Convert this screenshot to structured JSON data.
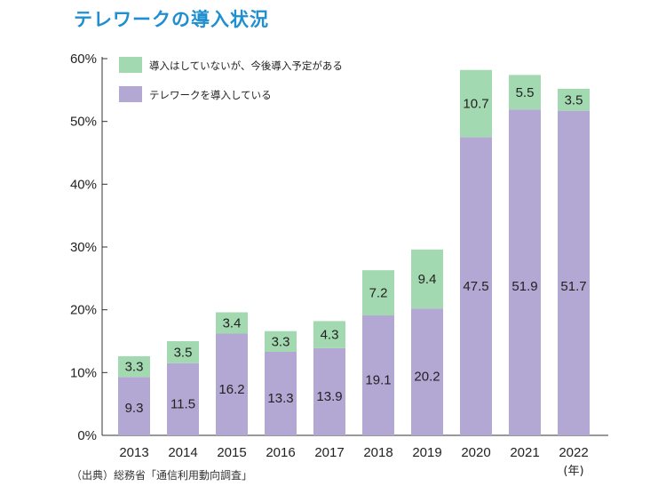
{
  "chart_data": {
    "type": "bar",
    "stacked": true,
    "title": "テレワークの導入状況",
    "categories": [
      "2013",
      "2014",
      "2015",
      "2016",
      "2017",
      "2018",
      "2019",
      "2020",
      "2021",
      "2022"
    ],
    "x_unit_label": "(年)",
    "series": [
      {
        "name": "テレワークを導入している",
        "color": "#b3a7d3",
        "values": [
          9.3,
          11.5,
          16.2,
          13.3,
          13.9,
          19.1,
          20.2,
          47.5,
          51.9,
          51.7
        ]
      },
      {
        "name": "導入はしていないが、今後導入予定がある",
        "color": "#a3d9b1",
        "values": [
          3.3,
          3.5,
          3.4,
          3.3,
          4.3,
          7.2,
          9.4,
          10.7,
          5.5,
          3.5
        ]
      }
    ],
    "ylim": [
      0,
      60
    ],
    "yticks": [
      "0%",
      "10%",
      "20%",
      "30%",
      "40%",
      "50%",
      "60%"
    ],
    "legend_position": "top-left"
  },
  "source_note": "（出典）総務省「通信利用動向調査」"
}
